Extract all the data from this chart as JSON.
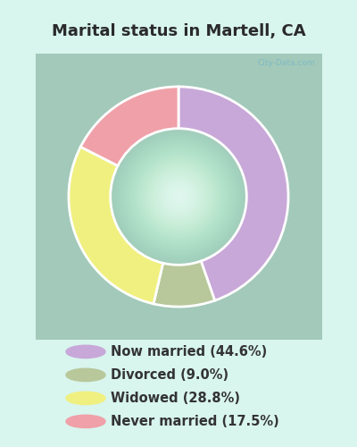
{
  "title": "Marital status in Martell, CA",
  "title_color": "#2a2a2a",
  "title_fontsize": 13,
  "background_color": "#d8f5ee",
  "chart_bg_color": "#e4f5ef",
  "categories": [
    "Now married (44.6%)",
    "Divorced (9.0%)",
    "Widowed (28.8%)",
    "Never married (17.5%)"
  ],
  "values": [
    44.6,
    9.0,
    28.8,
    17.5
  ],
  "colors": [
    "#c8a8d8",
    "#b8c89a",
    "#f0f080",
    "#f0a0a8"
  ],
  "legend_fontsize": 10.5,
  "legend_text_color": "#333333",
  "watermark": "City-Data.com",
  "donut_width": 0.38
}
